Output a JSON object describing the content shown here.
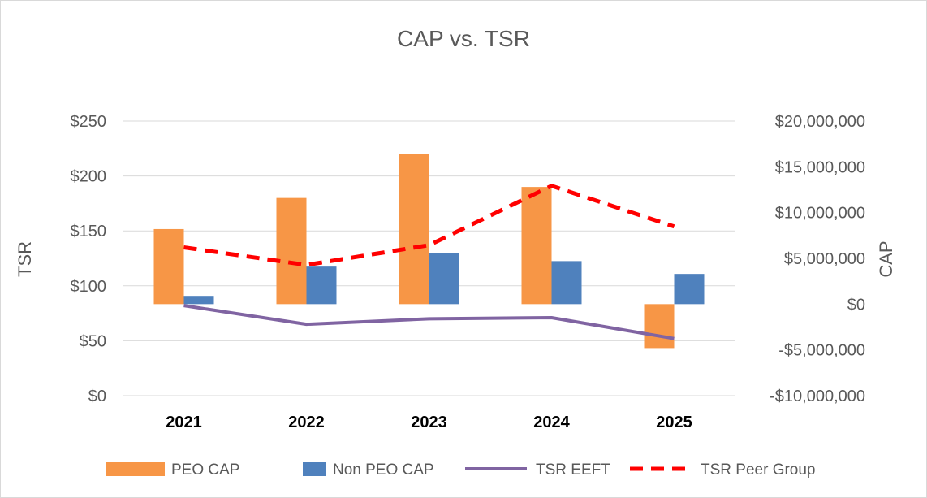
{
  "chart_data": {
    "type": "bar",
    "title": "CAP vs. TSR",
    "categories": [
      "2021",
      "2022",
      "2023",
      "2024",
      "2025"
    ],
    "y_left": {
      "label": "TSR",
      "range": [
        0,
        250
      ],
      "ticks": [
        0,
        50,
        100,
        150,
        200,
        250
      ],
      "tick_labels": [
        "$0",
        "$50",
        "$100",
        "$150",
        "$200",
        "$250"
      ]
    },
    "y_right": {
      "label": "CAP",
      "range": [
        -10000000,
        20000000
      ],
      "ticks": [
        -10000000,
        -5000000,
        0,
        5000000,
        10000000,
        15000000,
        20000000
      ],
      "tick_labels": [
        "-$10,000,000",
        "-$5,000,000",
        "$0",
        "$5,000,000",
        "$10,000,000",
        "$15,000,000",
        "$20,000,000"
      ]
    },
    "series": [
      {
        "name": "PEO CAP",
        "kind": "bar",
        "axis": "right",
        "color": "#F79646",
        "values": [
          8200000,
          11600000,
          16400000,
          12800000,
          -4800000
        ]
      },
      {
        "name": "Non PEO CAP",
        "kind": "bar",
        "axis": "right",
        "color": "#4F81BD",
        "values": [
          900000,
          4100000,
          5600000,
          4700000,
          3300000
        ]
      },
      {
        "name": "TSR EEFT",
        "kind": "line",
        "axis": "left",
        "color": "#8064A2",
        "dash": false,
        "values": [
          82,
          65,
          70,
          71,
          52
        ]
      },
      {
        "name": "TSR Peer Group",
        "kind": "line",
        "axis": "left",
        "color": "#FF0000",
        "dash": true,
        "values": [
          135,
          119,
          137,
          191,
          154
        ]
      }
    ],
    "grid": true,
    "legend_position": "bottom"
  }
}
